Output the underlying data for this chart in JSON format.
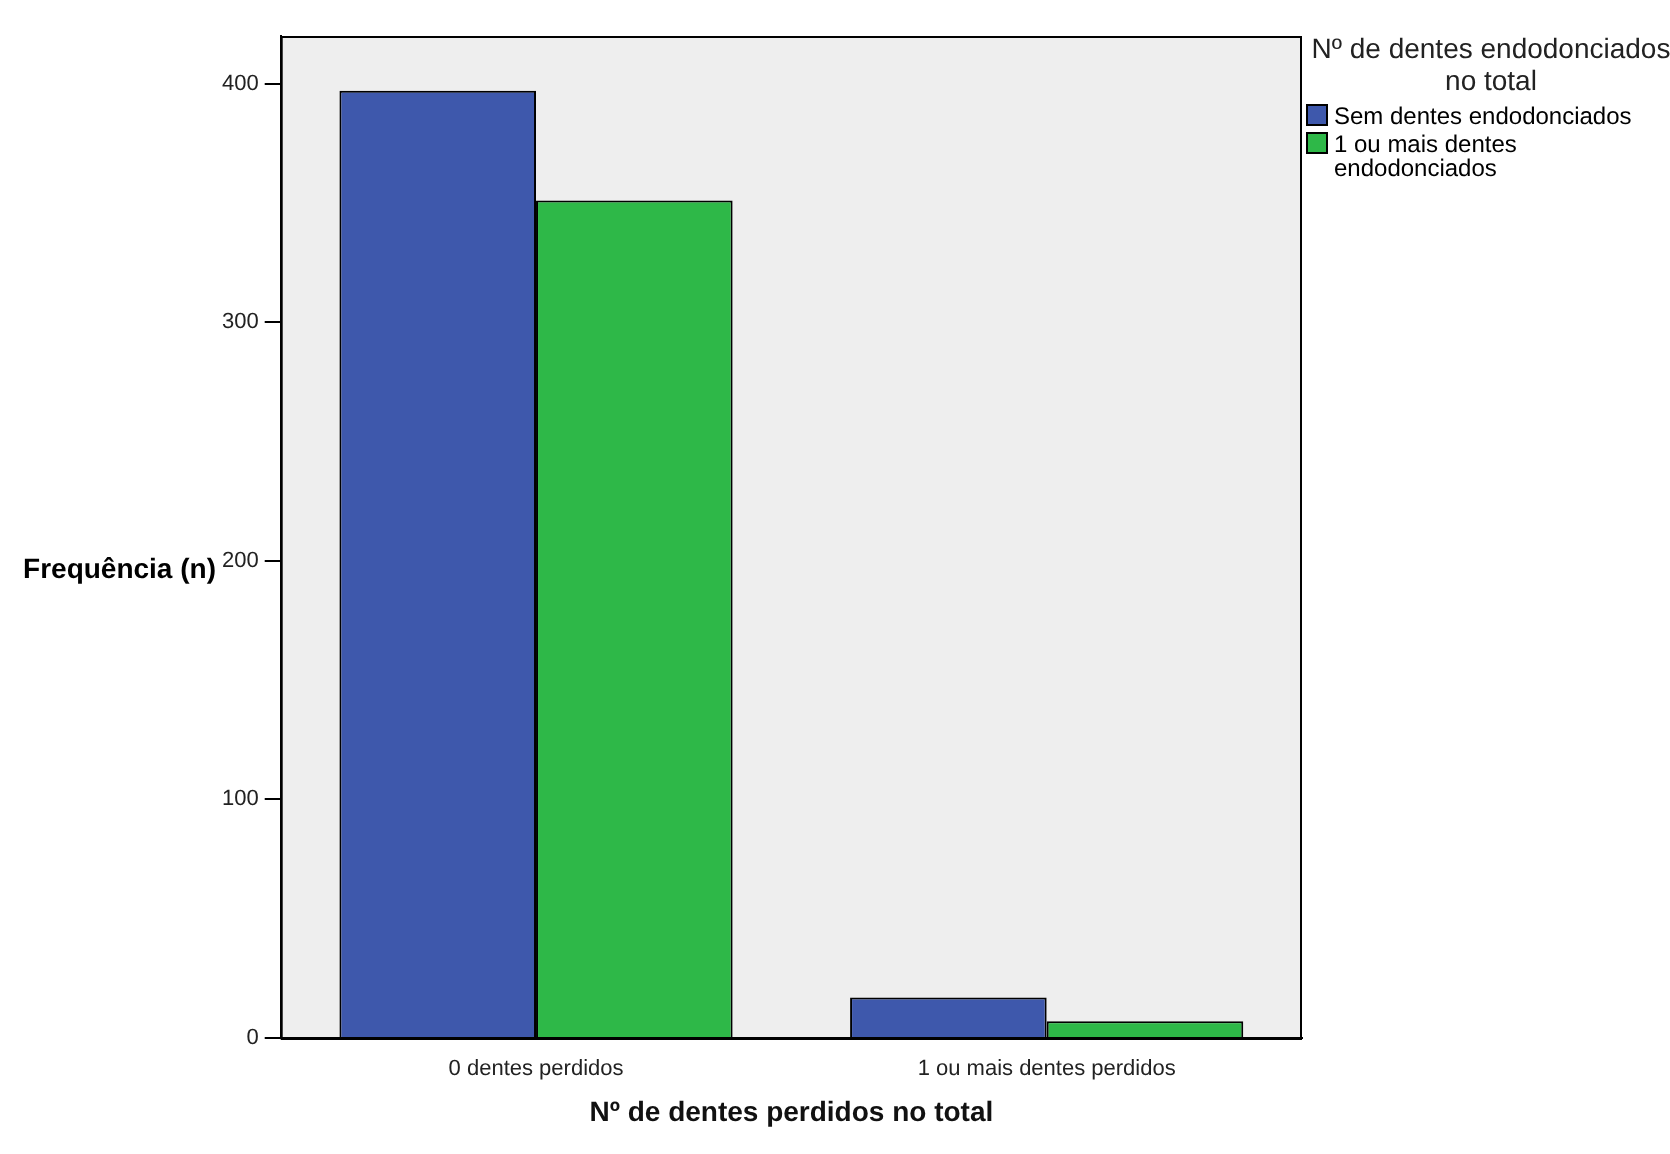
{
  "chart_data": {
    "type": "bar",
    "xlabel": "Nº de dentes perdidos no total",
    "ylabel": "Frequência (n)",
    "legend_title": "Nº de dentes endodonciados no total",
    "categories": [
      "0 dentes perdidos",
      "1 ou mais dentes perdidos"
    ],
    "series": [
      {
        "name": "Sem dentes endodonciados",
        "color": "#3e58ac",
        "values": [
          397,
          17
        ]
      },
      {
        "name": "1 ou mais dentes endodonciados",
        "color": "#2eb848",
        "values": [
          351,
          7
        ]
      }
    ],
    "ylim": [
      0,
      420
    ],
    "yticks": [
      0,
      100,
      200,
      300,
      400
    ],
    "grid": false,
    "legend": "top right"
  }
}
